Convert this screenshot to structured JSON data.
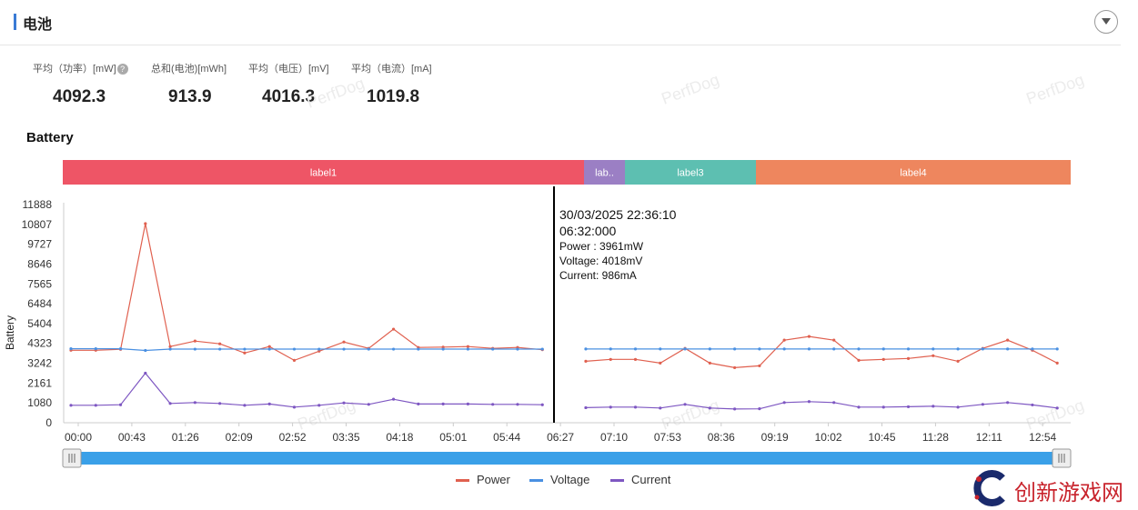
{
  "header": {
    "title": "电池"
  },
  "stats": [
    {
      "label": "平均（功率）[mW]",
      "value": "4092.3",
      "has_help": true
    },
    {
      "label": "总和(电池)[mWh]",
      "value": "913.9"
    },
    {
      "label": "平均（电压）[mV]",
      "value": "4016.3"
    },
    {
      "label": "平均（电流）[mA]",
      "value": "1019.8"
    }
  ],
  "watermark": "PerfDog",
  "brand": {
    "text": "创新游戏网"
  },
  "colors": {
    "power": "#e0604f",
    "voltage": "#4a90e2",
    "current": "#7e57c2",
    "slider": "#3aa0e8"
  },
  "chart_data": {
    "type": "line",
    "title": "Battery",
    "ylabel": "Battery",
    "ylim": [
      0,
      11888
    ],
    "yticks": [
      "0",
      "1080",
      "2161",
      "3242",
      "4323",
      "5404",
      "6484",
      "7565",
      "8646",
      "9727",
      "10807",
      "11888"
    ],
    "xticks": [
      "00:00",
      "00:43",
      "01:26",
      "02:09",
      "02:52",
      "03:35",
      "04:18",
      "05:01",
      "05:44",
      "06:27",
      "07:10",
      "07:53",
      "08:36",
      "09:19",
      "10:02",
      "10:45",
      "11:28",
      "12:11",
      "12:54"
    ],
    "labels": [
      {
        "name": "label1",
        "color": "#ee5566"
      },
      {
        "name": "lab..",
        "color": "#9b7fc4"
      },
      {
        "name": "label3",
        "color": "#5dbfb1"
      },
      {
        "name": "label4",
        "color": "#ee865e"
      }
    ],
    "series": [
      {
        "name": "Power",
        "color": "#e0604f",
        "segments": [
          [
            [
              0,
              3950
            ],
            [
              20,
              3950
            ],
            [
              40,
              4000
            ],
            [
              60,
              10850
            ],
            [
              80,
              4150
            ],
            [
              100,
              4450
            ],
            [
              120,
              4300
            ],
            [
              140,
              3800
            ],
            [
              160,
              4150
            ],
            [
              180,
              3400
            ],
            [
              200,
              3900
            ],
            [
              220,
              4400
            ],
            [
              240,
              4050
            ],
            [
              260,
              5100
            ],
            [
              280,
              4100
            ],
            [
              300,
              4120
            ],
            [
              320,
              4150
            ],
            [
              340,
              4050
            ],
            [
              360,
              4100
            ],
            [
              380,
              3980
            ]
          ],
          [
            [
              415,
              3350
            ],
            [
              435,
              3450
            ],
            [
              455,
              3450
            ],
            [
              475,
              3250
            ],
            [
              495,
              4050
            ],
            [
              515,
              3250
            ],
            [
              535,
              3000
            ],
            [
              555,
              3100
            ],
            [
              575,
              4500
            ],
            [
              595,
              4700
            ],
            [
              615,
              4500
            ],
            [
              635,
              3400
            ],
            [
              655,
              3450
            ],
            [
              675,
              3500
            ],
            [
              695,
              3650
            ],
            [
              715,
              3350
            ],
            [
              735,
              4050
            ],
            [
              755,
              4500
            ],
            [
              775,
              3950
            ],
            [
              795,
              3250
            ]
          ]
        ]
      },
      {
        "name": "Voltage",
        "color": "#4a90e2",
        "segments": [
          [
            [
              0,
              4030
            ],
            [
              20,
              4030
            ],
            [
              40,
              4030
            ],
            [
              60,
              3940
            ],
            [
              80,
              4010
            ],
            [
              100,
              4010
            ],
            [
              120,
              4010
            ],
            [
              140,
              4010
            ],
            [
              160,
              4010
            ],
            [
              180,
              4010
            ],
            [
              200,
              4010
            ],
            [
              220,
              4010
            ],
            [
              240,
              4010
            ],
            [
              260,
              4010
            ],
            [
              280,
              4010
            ],
            [
              300,
              4010
            ],
            [
              320,
              4010
            ],
            [
              340,
              4010
            ],
            [
              360,
              4010
            ],
            [
              380,
              4010
            ]
          ],
          [
            [
              415,
              4018
            ],
            [
              435,
              4018
            ],
            [
              455,
              4018
            ],
            [
              475,
              4018
            ],
            [
              495,
              4018
            ],
            [
              515,
              4018
            ],
            [
              535,
              4018
            ],
            [
              555,
              4018
            ],
            [
              575,
              4018
            ],
            [
              595,
              4018
            ],
            [
              615,
              4018
            ],
            [
              635,
              4018
            ],
            [
              655,
              4018
            ],
            [
              675,
              4018
            ],
            [
              695,
              4018
            ],
            [
              715,
              4018
            ],
            [
              735,
              4018
            ],
            [
              755,
              4018
            ],
            [
              775,
              4018
            ],
            [
              795,
              4018
            ]
          ]
        ]
      },
      {
        "name": "Current",
        "color": "#7e57c2",
        "segments": [
          [
            [
              0,
              950
            ],
            [
              20,
              950
            ],
            [
              40,
              980
            ],
            [
              60,
              2700
            ],
            [
              80,
              1050
            ],
            [
              100,
              1100
            ],
            [
              120,
              1050
            ],
            [
              140,
              950
            ],
            [
              160,
              1020
            ],
            [
              180,
              850
            ],
            [
              200,
              950
            ],
            [
              220,
              1080
            ],
            [
              240,
              1000
            ],
            [
              260,
              1280
            ],
            [
              280,
              1020
            ],
            [
              300,
              1020
            ],
            [
              320,
              1020
            ],
            [
              340,
              1000
            ],
            [
              360,
              1000
            ],
            [
              380,
              980
            ]
          ],
          [
            [
              415,
              820
            ],
            [
              435,
              850
            ],
            [
              455,
              850
            ],
            [
              475,
              800
            ],
            [
              495,
              1000
            ],
            [
              515,
              800
            ],
            [
              535,
              750
            ],
            [
              555,
              760
            ],
            [
              575,
              1100
            ],
            [
              595,
              1150
            ],
            [
              615,
              1100
            ],
            [
              635,
              850
            ],
            [
              655,
              850
            ],
            [
              675,
              870
            ],
            [
              695,
              900
            ],
            [
              715,
              850
            ],
            [
              735,
              1000
            ],
            [
              755,
              1100
            ],
            [
              775,
              970
            ],
            [
              795,
              800
            ]
          ]
        ]
      }
    ],
    "cursor": {
      "datetime": "30/03/2025 22:36:10",
      "time": "06:32:000",
      "lines": [
        "Power  : 3961mW",
        "Voltage: 4018mV",
        "Current: 986mA"
      ]
    }
  }
}
